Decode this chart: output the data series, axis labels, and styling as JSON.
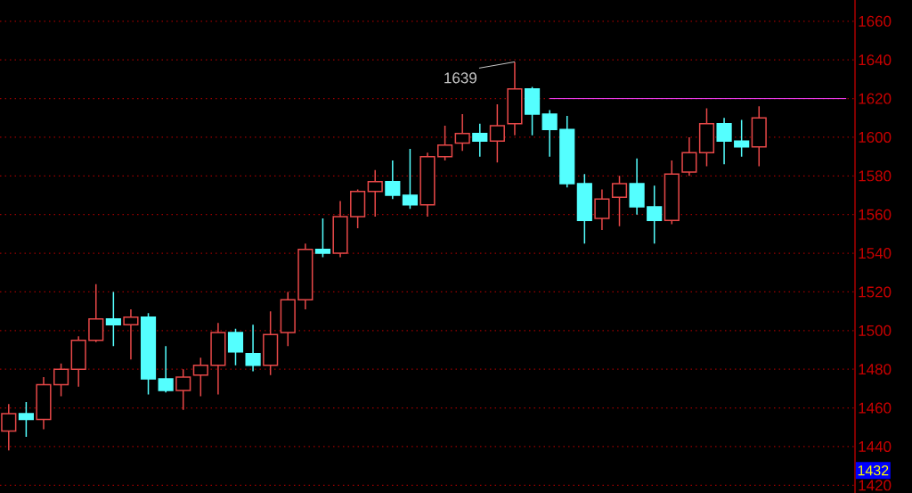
{
  "chart_data": {
    "type": "candlestick",
    "categories": [
      null,
      null,
      null,
      null,
      null,
      null,
      null,
      null,
      null,
      null,
      null,
      null,
      null,
      null,
      null,
      null,
      null,
      null,
      null,
      null,
      null,
      null,
      null,
      null,
      null,
      null,
      null,
      null,
      null,
      null,
      null,
      null,
      null,
      null,
      null,
      null,
      null,
      null,
      null,
      null,
      null,
      null,
      null,
      null,
      null,
      null,
      null,
      null,
      null
    ],
    "series": [
      {
        "ohlc": [
          [
            1448,
            1462,
            1438,
            1457
          ],
          [
            1457,
            1463,
            1445,
            1454
          ],
          [
            1454,
            1476,
            1449,
            1472
          ],
          [
            1472,
            1483,
            1466,
            1480
          ],
          [
            1480,
            1497,
            1471,
            1495
          ],
          [
            1495,
            1524,
            1494,
            1506
          ],
          [
            1506,
            1520,
            1492,
            1503
          ],
          [
            1503,
            1511,
            1485,
            1507
          ],
          [
            1507,
            1509,
            1467,
            1475
          ],
          [
            1475,
            1492,
            1468,
            1469
          ],
          [
            1469,
            1480,
            1459,
            1476
          ],
          [
            1477,
            1486,
            1466,
            1482
          ],
          [
            1482,
            1504,
            1467,
            1499
          ],
          [
            1499,
            1501,
            1482,
            1489
          ],
          [
            1488,
            1503,
            1479,
            1482
          ],
          [
            1482,
            1510,
            1477,
            1498
          ],
          [
            1499,
            1520,
            1492,
            1516
          ],
          [
            1516,
            1545,
            1511,
            1542
          ],
          [
            1542,
            1558,
            1538,
            1540
          ],
          [
            1540,
            1567,
            1538,
            1559
          ],
          [
            1559,
            1573,
            1553,
            1572
          ],
          [
            1572,
            1583,
            1559,
            1577
          ],
          [
            1577,
            1588,
            1568,
            1570
          ],
          [
            1570,
            1594,
            1563,
            1565
          ],
          [
            1565,
            1592,
            1559,
            1590
          ],
          [
            1590,
            1606,
            1588,
            1596
          ],
          [
            1597,
            1612,
            1593,
            1602
          ],
          [
            1602,
            1607,
            1590,
            1598
          ],
          [
            1598,
            1617,
            1587,
            1606
          ],
          [
            1607,
            1639,
            1601,
            1625
          ],
          [
            1625,
            1626,
            1601,
            1612
          ],
          [
            1612,
            1614,
            1590,
            1604
          ],
          [
            1604,
            1611,
            1574,
            1576
          ],
          [
            1576,
            1581,
            1545,
            1557
          ],
          [
            1558,
            1573,
            1552,
            1568
          ],
          [
            1569,
            1580,
            1554,
            1576
          ],
          [
            1576,
            1589,
            1560,
            1564
          ],
          [
            1564,
            1575,
            1545,
            1557
          ],
          [
            1557,
            1588,
            1555,
            1581
          ],
          [
            1582,
            1600,
            1580,
            1592
          ],
          [
            1592,
            1615,
            1585,
            1607
          ],
          [
            1607,
            1610,
            1586,
            1598
          ],
          [
            1598,
            1609,
            1590,
            1595
          ],
          [
            1595,
            1616,
            1585,
            1610
          ],
          null,
          null,
          null,
          null,
          null
        ],
        "colors": [
          "#e84848",
          "#54ffff",
          "#e84848",
          "#e84848",
          "#e84848",
          "#e84848",
          "#54ffff",
          "#e84848",
          "#54ffff",
          "#54ffff",
          "#e84848",
          "#e84848",
          "#e84848",
          "#54ffff",
          "#54ffff",
          "#e84848",
          "#e84848",
          "#e84848",
          "#54ffff",
          "#e84848",
          "#e84848",
          "#e84848",
          "#54ffff",
          "#54ffff",
          "#e84848",
          "#e84848",
          "#e84848",
          "#54ffff",
          "#e84848",
          "#e84848",
          "#54ffff",
          "#54ffff",
          "#54ffff",
          "#54ffff",
          "#e84848",
          "#e84848",
          "#54ffff",
          "#54ffff",
          "#e84848",
          "#e84848",
          "#e84848",
          "#54ffff",
          "#54ffff",
          "#e84848",
          null,
          null,
          null,
          null,
          null
        ]
      },
      {
        "type": "line",
        "color": "#ff40ff",
        "values": [
          null,
          null,
          null,
          null,
          null,
          null,
          null,
          null,
          null,
          null,
          null,
          null,
          null,
          null,
          null,
          null,
          null,
          null,
          null,
          null,
          null,
          null,
          null,
          null,
          null,
          null,
          null,
          null,
          null,
          null,
          null,
          1620,
          1620,
          1620,
          1620,
          1620,
          1620,
          1620,
          1620,
          1620,
          1620,
          1620,
          1620,
          1620,
          1620,
          1620,
          1620,
          1620,
          1620
        ]
      }
    ],
    "ylim": [
      1416,
      1671
    ],
    "yticks": [
      1420,
      1440,
      1460,
      1480,
      1500,
      1520,
      1540,
      1560,
      1580,
      1600,
      1620,
      1640,
      1660
    ],
    "grid": "y",
    "tick_labels": "y",
    "annotations": [
      "1639",
      "1432"
    ]
  }
}
